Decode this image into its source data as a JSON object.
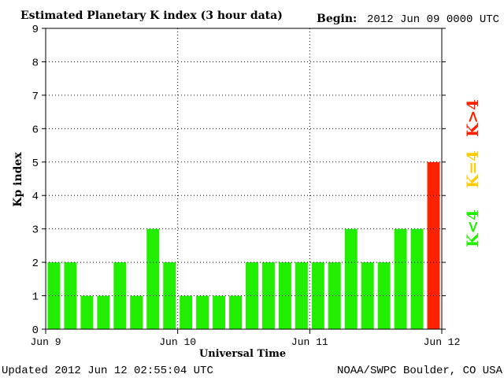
{
  "header": {
    "title": "Estimated Planetary K index (3 hour data)",
    "begin_label": "Begin:",
    "begin_value": "2012 Jun 09 0000 UTC"
  },
  "footer": {
    "updated": "Updated 2012 Jun 12 02:55:04 UTC",
    "source": "NOAA/SWPC Boulder, CO USA"
  },
  "legend": [
    {
      "label": "K>4",
      "color": "#ff2200"
    },
    {
      "label": "K=4",
      "color": "#ffcc00"
    },
    {
      "label": "K<4",
      "color": "#22ee00"
    }
  ],
  "chart_data": {
    "type": "bar",
    "xlabel": "Universal Time",
    "ylabel": "Kp index",
    "ylim": [
      0,
      9
    ],
    "yticks": [
      0,
      1,
      2,
      3,
      4,
      5,
      6,
      7,
      8,
      9
    ],
    "x_tick_labels": [
      "Jun 9",
      "Jun 10",
      "Jun 11",
      "Jun 12"
    ],
    "bar_interval_hours": 3,
    "values": [
      2,
      2,
      1,
      1,
      2,
      1,
      3,
      2,
      1,
      1,
      1,
      1,
      2,
      2,
      2,
      2,
      2,
      2,
      3,
      2,
      2,
      3,
      3,
      5
    ],
    "grid": "dotted, at days and each integer Kp",
    "colors": {
      "below_4": "#22ee00",
      "equal_4": "#ffcc00",
      "above_4": "#ff2200"
    }
  }
}
